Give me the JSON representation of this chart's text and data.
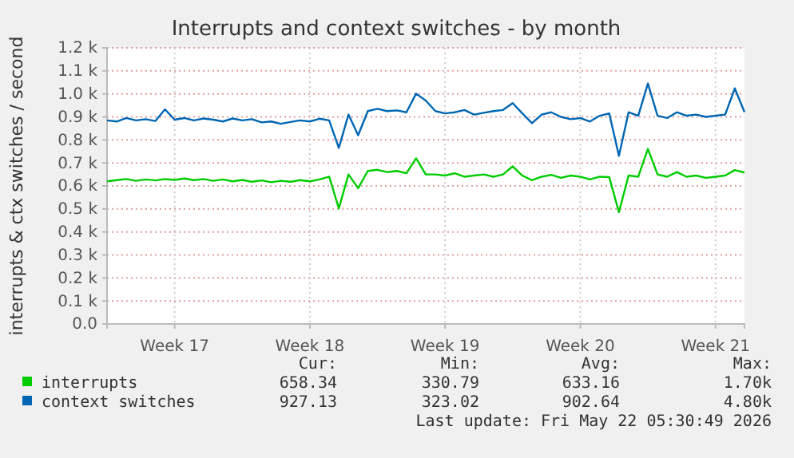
{
  "chart_data": {
    "type": "line",
    "title": "Interrupts and context switches - by month",
    "ylabel": "interrupts & ctx switches / second",
    "categories": [
      null,
      null,
      null,
      null,
      null,
      null,
      null,
      "Week 17",
      null,
      null,
      null,
      null,
      null,
      null,
      null,
      null,
      null,
      null,
      null,
      null,
      null,
      "Week 18",
      null,
      null,
      null,
      null,
      null,
      null,
      null,
      null,
      null,
      null,
      null,
      null,
      null,
      "Week 19",
      null,
      null,
      null,
      null,
      null,
      null,
      null,
      null,
      null,
      null,
      null,
      null,
      null,
      "Week 20",
      null,
      null,
      null,
      null,
      null,
      null,
      null,
      null,
      null,
      null,
      null,
      null,
      null,
      "Week 21",
      null,
      null,
      null
    ],
    "ylim": [
      0,
      1200
    ],
    "yticks": [
      {
        "value": 0,
        "label": "0.0"
      },
      {
        "value": 100,
        "label": "0.1 k"
      },
      {
        "value": 200,
        "label": "0.2 k"
      },
      {
        "value": 300,
        "label": "0.3 k"
      },
      {
        "value": 400,
        "label": "0.4 k"
      },
      {
        "value": 500,
        "label": "0.5 k"
      },
      {
        "value": 600,
        "label": "0.6 k"
      },
      {
        "value": 700,
        "label": "0.7 k"
      },
      {
        "value": 800,
        "label": "0.8 k"
      },
      {
        "value": 900,
        "label": "0.9 k"
      },
      {
        "value": 1000,
        "label": "1.0 k"
      },
      {
        "value": 1100,
        "label": "1.1 k"
      },
      {
        "value": 1200,
        "label": "1.2 k"
      }
    ],
    "grid": true,
    "legend": "bottom",
    "line_style": "solid",
    "marker": "none",
    "series": [
      {
        "name": "interrupts",
        "color": "#00cc00",
        "values": [
          620,
          625,
          630,
          622,
          628,
          624,
          630,
          626,
          632,
          625,
          630,
          622,
          628,
          620,
          626,
          618,
          624,
          616,
          622,
          618,
          625,
          620,
          628,
          640,
          502,
          650,
          590,
          665,
          670,
          660,
          665,
          655,
          720,
          650,
          650,
          645,
          655,
          640,
          645,
          650,
          640,
          650,
          685,
          645,
          625,
          640,
          648,
          635,
          645,
          640,
          628,
          640,
          638,
          486,
          645,
          640,
          761,
          650,
          640,
          660,
          640,
          645,
          635,
          640,
          645,
          669,
          658
        ]
      },
      {
        "name": "context switches",
        "color": "#0066b3",
        "values": [
          885,
          880,
          895,
          885,
          890,
          882,
          933,
          888,
          895,
          885,
          893,
          888,
          880,
          893,
          885,
          890,
          876,
          880,
          870,
          878,
          885,
          880,
          892,
          885,
          765,
          910,
          820,
          925,
          935,
          925,
          928,
          920,
          1001,
          971,
          925,
          915,
          920,
          930,
          910,
          918,
          925,
          930,
          960,
          915,
          873,
          910,
          920,
          900,
          890,
          895,
          880,
          905,
          915,
          731,
          920,
          905,
          1045,
          905,
          895,
          920,
          905,
          910,
          900,
          905,
          910,
          1024,
          921
        ]
      }
    ],
    "annotations": [
      "Cur:",
      "Min:",
      "Avg:",
      "Max:",
      "658.34",
      "330.79",
      "633.16",
      "1.70k",
      "927.13",
      "323.02",
      "902.64",
      "4.80k",
      "Last update: Fri May 22 05:30:49 2026"
    ]
  }
}
